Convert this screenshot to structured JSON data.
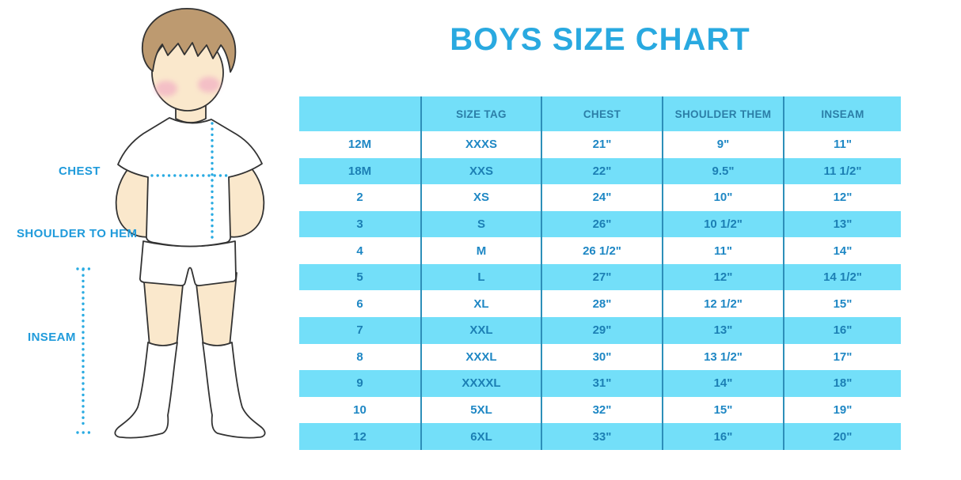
{
  "title": "BOYS SIZE CHART",
  "figure": {
    "labels": {
      "chest": "CHEST",
      "shoulder_to_hem": "SHOULDER TO HEM",
      "inseam": "INSEAM"
    }
  },
  "table": {
    "columns": [
      "",
      "SIZE TAG",
      "CHEST",
      "SHOULDER THEM",
      "INSEAM"
    ],
    "rows": [
      [
        "12M",
        "XXXS",
        "21\"",
        "9\"",
        "11\""
      ],
      [
        "18M",
        "XXS",
        "22\"",
        "9.5\"",
        "11 1/2\""
      ],
      [
        "2",
        "XS",
        "24\"",
        "10\"",
        "12\""
      ],
      [
        "3",
        "S",
        "26\"",
        "10 1/2\"",
        "13\""
      ],
      [
        "4",
        "M",
        "26 1/2\"",
        "11\"",
        "14\""
      ],
      [
        "5",
        "L",
        "27\"",
        "12\"",
        "14 1/2\""
      ],
      [
        "6",
        "XL",
        "28\"",
        "12 1/2\"",
        "15\""
      ],
      [
        "7",
        "XXL",
        "29\"",
        "13\"",
        "16\""
      ],
      [
        "8",
        "XXXL",
        "30\"",
        "13 1/2\"",
        "17\""
      ],
      [
        "9",
        "XXXXL",
        "31\"",
        "14\"",
        "18\""
      ],
      [
        "10",
        "5XL",
        "32\"",
        "15\"",
        "19\""
      ],
      [
        "12",
        "6XL",
        "33\"",
        "16\"",
        "20\""
      ]
    ]
  },
  "colors": {
    "title_blue": "#29A9E0",
    "band_blue": "#73DFF9",
    "divider_blue": "#2D8FB9",
    "header_text": "#2B7EA7",
    "cell_text": "#1E87C4",
    "label_blue": "#209BDB",
    "dotted_line": "#29ABE2",
    "skin": "#FAE8CC",
    "hair": "#BD9A70",
    "blush": "#F3B5C5"
  }
}
